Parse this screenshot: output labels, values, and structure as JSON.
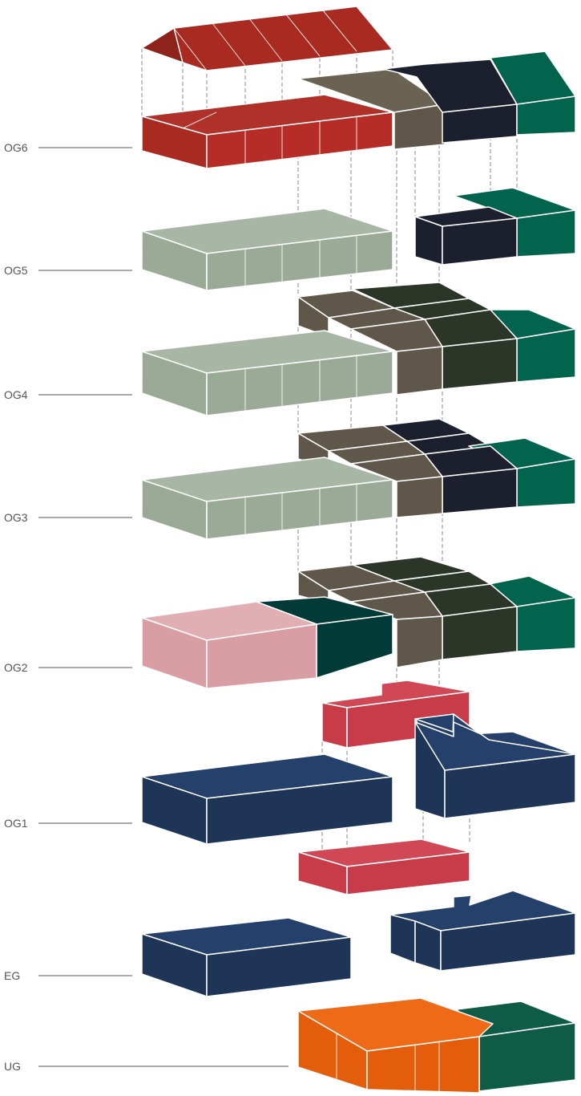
{
  "floors": [
    {
      "id": "og6",
      "label": "OG6"
    },
    {
      "id": "og5",
      "label": "OG5"
    },
    {
      "id": "og4",
      "label": "OG4"
    },
    {
      "id": "og3",
      "label": "OG3"
    },
    {
      "id": "og2",
      "label": "OG2"
    },
    {
      "id": "og1",
      "label": "OG1"
    },
    {
      "id": "eg",
      "label": "EG"
    },
    {
      "id": "ug",
      "label": "UG"
    }
  ],
  "colors": {
    "red": "#a82a21",
    "sage": "#9aaa97",
    "taupe": "#5f574a",
    "navy_dark": "#1c1f2e",
    "green": "#03644e",
    "forest": "#2b3628",
    "teal_dark": "#013a36",
    "pink": "#d99ea4",
    "crimson": "#c73c48",
    "navy": "#1e3557",
    "orange": "#e35d0a",
    "green_ug": "#0e5b46",
    "label": "#555555"
  }
}
